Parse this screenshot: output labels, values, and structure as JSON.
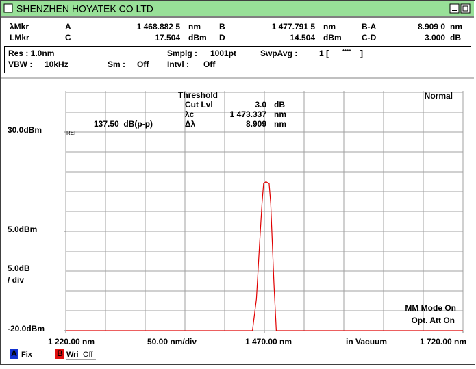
{
  "window": {
    "title": "SHENZHEN HOYATEK CO LTD"
  },
  "markers": {
    "rows": [
      [
        "λMkr",
        "A",
        "1 468.882 5",
        "nm",
        "B",
        "1 477.791 5",
        "nm",
        "B-A",
        "8.909 0",
        "nm"
      ],
      [
        "LMkr",
        "C",
        "17.504",
        "dBm",
        "D",
        "14.504",
        "dBm",
        "C-D",
        "3.000",
        "dB"
      ]
    ]
  },
  "settings": {
    "rows": [
      [
        "Res : 1.0nm",
        "Smplg :",
        "1001pt",
        "SwpAvg :",
        "1 [",
        "****",
        "]"
      ],
      [
        "VBW :",
        "10kHz",
        "Sm :",
        "Off",
        "Intvl :",
        "Off"
      ]
    ]
  },
  "analysis": {
    "title": "Threshold",
    "rows": [
      [
        "Cut Lvl",
        "3.0",
        "dB"
      ],
      [
        "λc",
        "1 473.337",
        "nm"
      ],
      [
        "Δλ",
        "8.909",
        "nm"
      ]
    ],
    "ptp": "137.50  dB(p-p)",
    "ref": "REF",
    "mode": "Normal",
    "status": [
      "MM Mode On",
      "Opt. Att On"
    ]
  },
  "chart_data": {
    "type": "line",
    "color": "#e00000",
    "x": [
      1220,
      1455,
      1460,
      1464,
      1467,
      1469,
      1472,
      1476,
      1478,
      1480,
      1482,
      1485,
      1720
    ],
    "values": [
      -20,
      -20,
      -12,
      2,
      12,
      17,
      17.5,
      17,
      12,
      2,
      -8,
      -20,
      -20
    ],
    "xlim": [
      1220,
      1720
    ],
    "ylim": [
      -20,
      30
    ],
    "xticks": [
      {
        "value": 1220,
        "label": "1 220.00 nm"
      },
      {
        "value": 1470,
        "label": "1 470.00 nm"
      },
      {
        "value": 1720,
        "label": "1 720.00 nm"
      }
    ],
    "yticks": [
      {
        "value": 30,
        "label": "30.0dBm"
      },
      {
        "value": 5,
        "label": "5.0dBm"
      },
      {
        "value": -20,
        "label": "-20.0dBm"
      }
    ],
    "y_div": [
      "5.0dB",
      "/ div"
    ],
    "x_div": "50.00 nm/div",
    "x_note": "in Vacuum"
  },
  "traces": [
    {
      "id": "A",
      "mode": "Fix"
    },
    {
      "id": "B",
      "mode": "Wri",
      "state": "Off"
    }
  ]
}
